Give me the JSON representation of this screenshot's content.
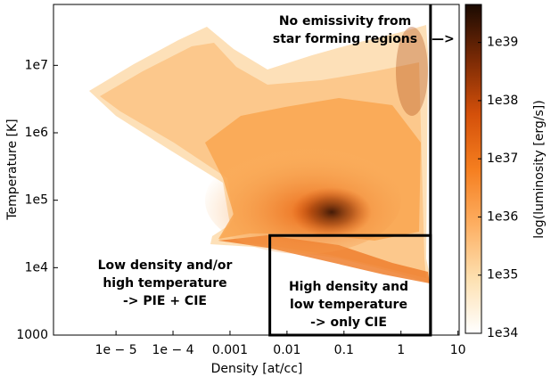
{
  "chart_data": {
    "type": "phase-diagram",
    "xlabel": "Density [at/cc]",
    "ylabel": "Temperature [K]",
    "colorbar_label": "log(luminosity [erg/s])",
    "xscale": "log",
    "yscale": "log",
    "cscale": "log",
    "xlim": [
      8e-07,
      10.5
    ],
    "ylim": [
      1000,
      80000000
    ],
    "clim": [
      1e+34,
      4.5e+39
    ],
    "xticks": [
      {
        "value": 1e-05,
        "label": "1e − 5"
      },
      {
        "value": 0.0001,
        "label": "1e − 4"
      },
      0.001,
      0.01,
      0.1,
      1,
      10
    ],
    "yticks": [
      1000,
      {
        "value": 10000,
        "label": "1e4"
      },
      {
        "value": 100000,
        "label": "1e5"
      },
      {
        "value": 1000000,
        "label": "1e6"
      },
      {
        "value": 10000000,
        "label": "1e7"
      }
    ],
    "cticks": [
      {
        "value": 1e+34,
        "label": "1e34"
      },
      {
        "value": 1e+35,
        "label": "1e35"
      },
      {
        "value": 1e+36,
        "label": "1e36"
      },
      {
        "value": 1e+37,
        "label": "1e37"
      },
      {
        "value": 1e+38,
        "label": "1e38"
      },
      {
        "value": 1e+39,
        "label": "1e39"
      }
    ],
    "colormap": [
      "#ffffff",
      "#fde0b0",
      "#fdae61",
      "#f57e1f",
      "#d4500a",
      "#7a2a05",
      "#1a0a02"
    ],
    "cutoff_density": 3.3,
    "cie_region": {
      "xlim": [
        0.005,
        3.3
      ],
      "ylim": [
        1000,
        30000
      ]
    },
    "annotations": [
      {
        "lines": [
          "No emissivity from",
          "star forming regions"
        ],
        "arrow": "—>"
      },
      {
        "lines": [
          "Low density and/or",
          "high temperature",
          "-> PIE + CIE"
        ]
      },
      {
        "lines": [
          "High density and",
          "low temperature",
          "-> only CIE"
        ]
      }
    ]
  }
}
